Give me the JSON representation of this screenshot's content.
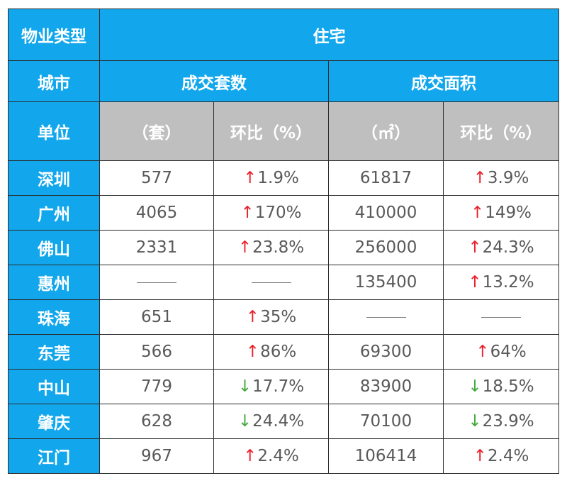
{
  "header": {
    "type_label": "物业类型",
    "type_value": "住宅",
    "city_label": "城市",
    "group_count": "成交套数",
    "group_area": "成交面积",
    "unit_label": "单位",
    "unit_count": "（套）",
    "unit_change": "环比（%）",
    "unit_area": "（㎡）",
    "unit_change2": "环比（%）"
  },
  "colors": {
    "header_blue": "#12a7ec",
    "header_gray": "#bfbfbf",
    "up": "#e8202a",
    "down": "#43a93b"
  },
  "rows": [
    {
      "city": "深圳",
      "count": "577",
      "count_change": "1.9%",
      "count_dir": "up",
      "area": "61817",
      "area_change": "3.9%",
      "area_dir": "up"
    },
    {
      "city": "广州",
      "count": "4065",
      "count_change": "170%",
      "count_dir": "up",
      "area": "410000",
      "area_change": "149%",
      "area_dir": "up"
    },
    {
      "city": "佛山",
      "count": "2331",
      "count_change": "23.8%",
      "count_dir": "up",
      "area": "256000",
      "area_change": "24.3%",
      "area_dir": "up"
    },
    {
      "city": "惠州",
      "count": null,
      "count_change": null,
      "count_dir": null,
      "area": "135400",
      "area_change": "13.2%",
      "area_dir": "up"
    },
    {
      "city": "珠海",
      "count": "651",
      "count_change": "35%",
      "count_dir": "up",
      "area": null,
      "area_change": null,
      "area_dir": null
    },
    {
      "city": "东莞",
      "count": "566",
      "count_change": "86%",
      "count_dir": "up",
      "area": "69300",
      "area_change": "64%",
      "area_dir": "up"
    },
    {
      "city": "中山",
      "count": "779",
      "count_change": "17.7%",
      "count_dir": "down",
      "area": "83900",
      "area_change": "18.5%",
      "area_dir": "down"
    },
    {
      "city": "肇庆",
      "count": "628",
      "count_change": "24.4%",
      "count_dir": "down",
      "area": "70100",
      "area_change": "23.9%",
      "area_dir": "down"
    },
    {
      "city": "江门",
      "count": "967",
      "count_change": "2.4%",
      "count_dir": "up",
      "area": "106414",
      "area_change": "2.4%",
      "area_dir": "up"
    }
  ]
}
